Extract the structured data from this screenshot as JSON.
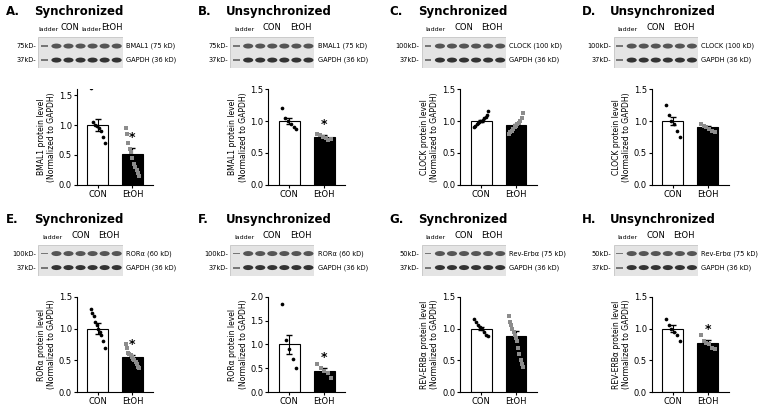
{
  "chart_data": [
    {
      "type": "bar",
      "panel": "A.",
      "title": "Synchronized",
      "blot": {
        "ladder_marks": [
          "75kD-",
          "37kD-"
        ],
        "lanes": [
          "ladder",
          "CON",
          "ladder",
          "EtOH"
        ],
        "bands": [
          "BMAL1 (75 kD)",
          "GAPDH (36 kD)"
        ]
      },
      "ylabel": "BMAL1 protein level\n(Normalized to GAPDH)",
      "categories": [
        "CON",
        "EtOH"
      ],
      "values": [
        1.0,
        0.52
      ],
      "errors": [
        0.1,
        0.09
      ],
      "points": [
        [
          1.62,
          1.05,
          1.0,
          0.98,
          0.95,
          0.9,
          0.8,
          0.7
        ],
        [
          0.95,
          0.85,
          0.7,
          0.6,
          0.55,
          0.45,
          0.35,
          0.3,
          0.25,
          0.2,
          0.15
        ]
      ],
      "significance": [
        null,
        "*"
      ],
      "colors": [
        "#ffffff",
        "#000000"
      ],
      "ylim": [
        0,
        1.6
      ],
      "yticks": [
        {
          "value": 0,
          "label": "0.0"
        },
        {
          "value": 0.5,
          "label": "0.5"
        },
        {
          "value": 1,
          "label": "1.0"
        },
        {
          "value": 1.5,
          "label": "1.5"
        }
      ]
    },
    {
      "type": "bar",
      "panel": "B.",
      "title": "Unsynchronized",
      "blot": {
        "ladder_marks": [
          "75kD-",
          "37kD-"
        ],
        "lanes": [
          "ladder",
          "CON",
          "EtOH"
        ],
        "bands": [
          "BMAL1 (75 kD)",
          "GAPDH (36 kD)"
        ]
      },
      "ylabel": "BMAL1 protein level\n(Normalized to GAPDH)",
      "categories": [
        "CON",
        "EtOH"
      ],
      "values": [
        1.0,
        0.75
      ],
      "errors": [
        0.05,
        0.03
      ],
      "points": [
        [
          1.2,
          1.05,
          1.0,
          0.95,
          0.9,
          0.88
        ],
        [
          0.8,
          0.78,
          0.75,
          0.73,
          0.7,
          0.72
        ]
      ],
      "significance": [
        null,
        "*"
      ],
      "colors": [
        "#ffffff",
        "#000000"
      ],
      "ylim": [
        0,
        1.5
      ],
      "yticks": [
        {
          "value": 0,
          "label": "0.0"
        },
        {
          "value": 0.5,
          "label": "0.5"
        },
        {
          "value": 1,
          "label": "1.0"
        },
        {
          "value": 1.5,
          "label": "1.5"
        }
      ]
    },
    {
      "type": "bar",
      "panel": "C.",
      "title": "Synchronized",
      "blot": {
        "ladder_marks": [
          "100kD-",
          "37kD-"
        ],
        "lanes": [
          "ladder",
          "CON",
          "EtOH"
        ],
        "bands": [
          "CLOCK (100 kD)",
          "GAPDH (36 kD)"
        ]
      },
      "ylabel": "CLOCK protein level\n(Normalized to GAPDH)",
      "categories": [
        "CON",
        "EtOH"
      ],
      "values": [
        1.0,
        0.93
      ],
      "errors": [
        0.02,
        0.03
      ],
      "points": [
        [
          0.9,
          0.92,
          0.95,
          0.97,
          0.98,
          1.0,
          1.0,
          1.02,
          1.04,
          1.06,
          1.1,
          1.15
        ],
        [
          0.8,
          0.82,
          0.85,
          0.88,
          0.9,
          0.92,
          0.95,
          0.97,
          1.0,
          1.05,
          1.12
        ]
      ],
      "significance": [
        null,
        null
      ],
      "colors": [
        "#ffffff",
        "#000000"
      ],
      "ylim": [
        0,
        1.5
      ],
      "yticks": [
        {
          "value": 0,
          "label": "0.0"
        },
        {
          "value": 0.5,
          "label": "0.5"
        },
        {
          "value": 1,
          "label": "1.0"
        },
        {
          "value": 1.5,
          "label": "1.5"
        }
      ]
    },
    {
      "type": "bar",
      "panel": "D.",
      "title": "Unsynchronized",
      "blot": {
        "ladder_marks": [
          "100kD-",
          "37kD-"
        ],
        "lanes": [
          "ladder",
          "CON",
          "EtOH"
        ],
        "bands": [
          "CLOCK (100 kD)",
          "GAPDH (36 kD)"
        ]
      },
      "ylabel": "CLOCK protein level\n(Normalized to GAPDH)",
      "categories": [
        "CON",
        "EtOH"
      ],
      "values": [
        1.0,
        0.9
      ],
      "errors": [
        0.07,
        0.02
      ],
      "points": [
        [
          1.25,
          1.1,
          1.0,
          0.95,
          0.85,
          0.75
        ],
        [
          0.95,
          0.92,
          0.9,
          0.88,
          0.85,
          0.83
        ]
      ],
      "significance": [
        null,
        null
      ],
      "colors": [
        "#ffffff",
        "#000000"
      ],
      "ylim": [
        0,
        1.5
      ],
      "yticks": [
        {
          "value": 0,
          "label": "0.0"
        },
        {
          "value": 0.5,
          "label": "0.5"
        },
        {
          "value": 1,
          "label": "1.0"
        },
        {
          "value": 1.5,
          "label": "1.5"
        }
      ]
    },
    {
      "type": "bar",
      "panel": "E.",
      "title": "Synchronized",
      "blot": {
        "ladder_marks": [
          "100kD-",
          "37kD-"
        ],
        "lanes": [
          "ladder",
          "CON",
          "EtOH"
        ],
        "bands": [
          "RORα (60 kD)",
          "GAPDH (36 kD)"
        ]
      },
      "ylabel": "RORα protein level\n(Normalized to GAPDH)",
      "categories": [
        "CON",
        "EtOH"
      ],
      "values": [
        1.0,
        0.55
      ],
      "errors": [
        0.08,
        0.04
      ],
      "points": [
        [
          1.3,
          1.25,
          1.2,
          1.1,
          1.05,
          1.0,
          0.95,
          0.9,
          0.8,
          0.7
        ],
        [
          0.75,
          0.7,
          0.62,
          0.6,
          0.58,
          0.55,
          0.52,
          0.5,
          0.48,
          0.45,
          0.4,
          0.38
        ]
      ],
      "significance": [
        null,
        "*"
      ],
      "colors": [
        "#ffffff",
        "#000000"
      ],
      "ylim": [
        0,
        1.5
      ],
      "yticks": [
        {
          "value": 0,
          "label": "0.0"
        },
        {
          "value": 0.5,
          "label": "0.5"
        },
        {
          "value": 1,
          "label": "1.0"
        },
        {
          "value": 1.5,
          "label": "1.5"
        }
      ]
    },
    {
      "type": "bar",
      "panel": "F.",
      "title": "Unsynchronized",
      "blot": {
        "ladder_marks": [
          "100kD-",
          "37kD-"
        ],
        "lanes": [
          "ladder",
          "CON",
          "EtOH"
        ],
        "bands": [
          "RORα (60 kD)",
          "GAPDH (36 kD)"
        ]
      },
      "ylabel": "RORα protein level\n(Normalized to GAPDH)",
      "categories": [
        "CON",
        "EtOH"
      ],
      "values": [
        1.0,
        0.45
      ],
      "errors": [
        0.2,
        0.05
      ],
      "points": [
        [
          1.85,
          1.1,
          0.9,
          0.7,
          0.5
        ],
        [
          0.6,
          0.5,
          0.45,
          0.4,
          0.3
        ]
      ],
      "significance": [
        null,
        "*"
      ],
      "colors": [
        "#ffffff",
        "#000000"
      ],
      "ylim": [
        0,
        2.0
      ],
      "yticks": [
        {
          "value": 0,
          "label": "0.0"
        },
        {
          "value": 0.5,
          "label": "0.5"
        },
        {
          "value": 1,
          "label": "1.0"
        },
        {
          "value": 1.5,
          "label": "1.5"
        },
        {
          "value": 2,
          "label": "2.0"
        }
      ]
    },
    {
      "type": "bar",
      "panel": "G.",
      "title": "Synchronized",
      "blot": {
        "ladder_marks": [
          "50kD-",
          "37kD-"
        ],
        "lanes": [
          "ladder",
          "CON",
          "EtOH"
        ],
        "bands": [
          "Rev-Erbα (75 kD)",
          "GAPDH (36 kD)"
        ]
      },
      "ylabel": "REV-ERBα protein level\n(Normalized to GAPDH)",
      "categories": [
        "CON",
        "EtOH"
      ],
      "values": [
        1.0,
        0.88
      ],
      "errors": [
        0.03,
        0.08
      ],
      "points": [
        [
          1.15,
          1.1,
          1.05,
          1.02,
          1.0,
          0.95,
          0.9,
          0.88
        ],
        [
          1.2,
          1.1,
          1.05,
          1.0,
          0.95,
          0.9,
          0.85,
          0.8,
          0.7,
          0.6,
          0.5,
          0.45,
          0.4
        ]
      ],
      "significance": [
        null,
        null
      ],
      "colors": [
        "#ffffff",
        "#000000"
      ],
      "ylim": [
        0,
        1.5
      ],
      "yticks": [
        {
          "value": 0,
          "label": "0.0"
        },
        {
          "value": 0.5,
          "label": "0.5"
        },
        {
          "value": 1,
          "label": "1.0"
        },
        {
          "value": 1.5,
          "label": "1.5"
        }
      ]
    },
    {
      "type": "bar",
      "panel": "H.",
      "title": "Unsynchronized",
      "blot": {
        "ladder_marks": [
          "50kD-",
          "37kD-"
        ],
        "lanes": [
          "ladder",
          "CON",
          "EtOH"
        ],
        "bands": [
          "Rev-Erbα (75 kD)",
          "GAPDH (36 kD)"
        ]
      },
      "ylabel": "REV-ERBα protein level\n(Normalized to GAPDH)",
      "categories": [
        "CON",
        "EtOH"
      ],
      "values": [
        1.0,
        0.78
      ],
      "errors": [
        0.05,
        0.04
      ],
      "points": [
        [
          1.15,
          1.05,
          1.0,
          0.95,
          0.9,
          0.8
        ],
        [
          0.9,
          0.8,
          0.78,
          0.75,
          0.7,
          0.68
        ]
      ],
      "significance": [
        null,
        "*"
      ],
      "colors": [
        "#ffffff",
        "#000000"
      ],
      "ylim": [
        0,
        1.5
      ],
      "yticks": [
        {
          "value": 0,
          "label": "0.0"
        },
        {
          "value": 0.5,
          "label": "0.5"
        },
        {
          "value": 1,
          "label": "1.0"
        },
        {
          "value": 1.5,
          "label": "1.5"
        }
      ]
    }
  ]
}
